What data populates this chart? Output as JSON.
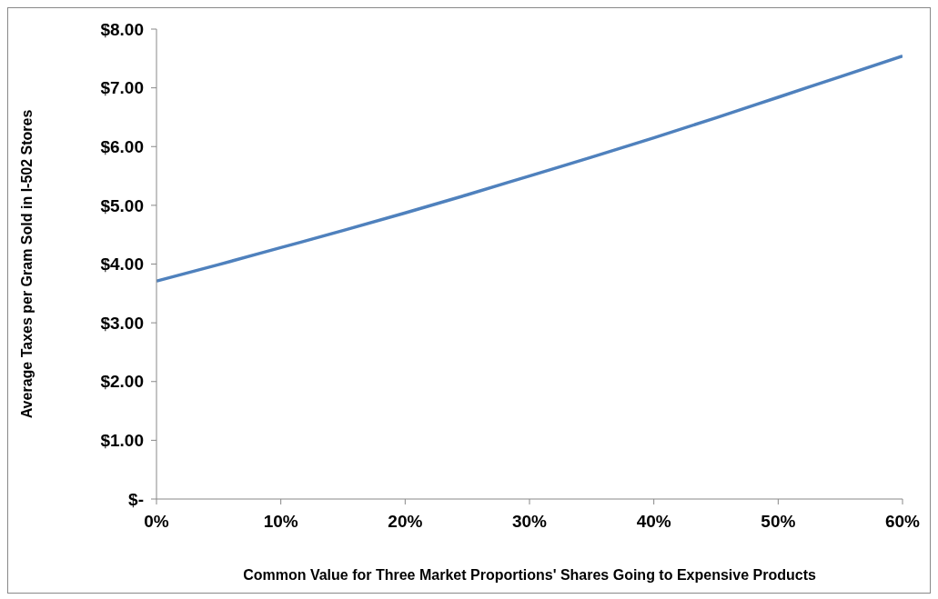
{
  "chart_data": {
    "type": "line",
    "xlabel": "Common Value for Three Market Proportions' Shares Going to Expensive Products",
    "ylabel": "Average Taxes per Gram Sold in I-502 Stores",
    "x": [
      0,
      5,
      10,
      15,
      20,
      25,
      30,
      35,
      40,
      45,
      50,
      55,
      60
    ],
    "series": [
      {
        "color": "#4f81bd",
        "values": [
          3.71,
          3.99,
          4.28,
          4.57,
          4.87,
          5.18,
          5.5,
          5.82,
          6.15,
          6.49,
          6.84,
          7.19,
          7.54
        ]
      }
    ],
    "xlim": [
      0,
      60
    ],
    "xticks": [
      {
        "value": 0,
        "label": "0%"
      },
      {
        "value": 10,
        "label": "10%"
      },
      {
        "value": 20,
        "label": "20%"
      },
      {
        "value": 30,
        "label": "30%"
      },
      {
        "value": 40,
        "label": "40%"
      },
      {
        "value": 50,
        "label": "50%"
      },
      {
        "value": 60,
        "label": "60%"
      }
    ],
    "ylim": [
      0,
      8
    ],
    "yticks": [
      {
        "value": 0,
        "label": "$-"
      },
      {
        "value": 1,
        "label": "$1.00"
      },
      {
        "value": 2,
        "label": "$2.00"
      },
      {
        "value": 3,
        "label": "$3.00"
      },
      {
        "value": 4,
        "label": "$4.00"
      },
      {
        "value": 5,
        "label": "$5.00"
      },
      {
        "value": 6,
        "label": "$6.00"
      },
      {
        "value": 7,
        "label": "$7.00"
      },
      {
        "value": 8,
        "label": "$8.00"
      }
    ],
    "grid": false,
    "legend": false,
    "marker": "none",
    "line_style": "solid"
  }
}
